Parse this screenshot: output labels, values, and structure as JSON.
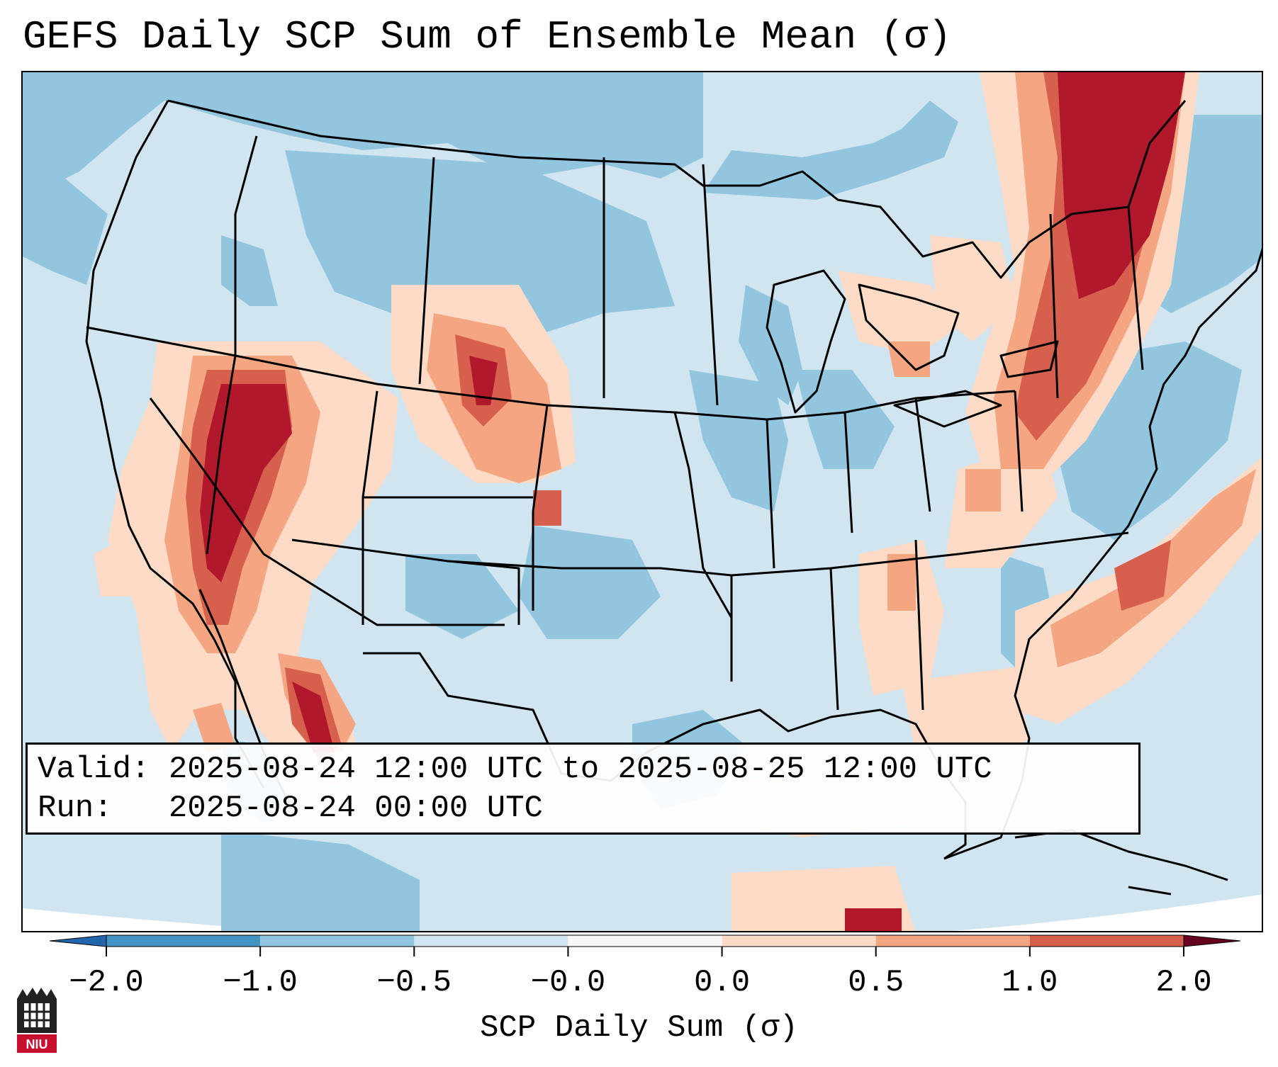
{
  "title": "GEFS Daily SCP Sum of Ensemble Mean (σ)",
  "info": {
    "valid_label": "Valid:",
    "valid_text": "2025-08-24 12:00 UTC to 2025-08-25 12:00 UTC",
    "run_label": "Run:",
    "run_text": "2025-08-24 00:00 UTC"
  },
  "colorbar": {
    "label": "SCP Daily Sum (σ)",
    "ticks": [
      "−2.0",
      "−1.0",
      "−0.5",
      "−0.0",
      "0.0",
      "0.5",
      "1.0",
      "2.0"
    ],
    "colors": [
      "#4393c3",
      "#92c5de",
      "#d1e5f0",
      "#f7f7f7",
      "#fddbc7",
      "#f4a582",
      "#d6604d",
      "#b2182b"
    ]
  },
  "logo_text": "NIU"
}
